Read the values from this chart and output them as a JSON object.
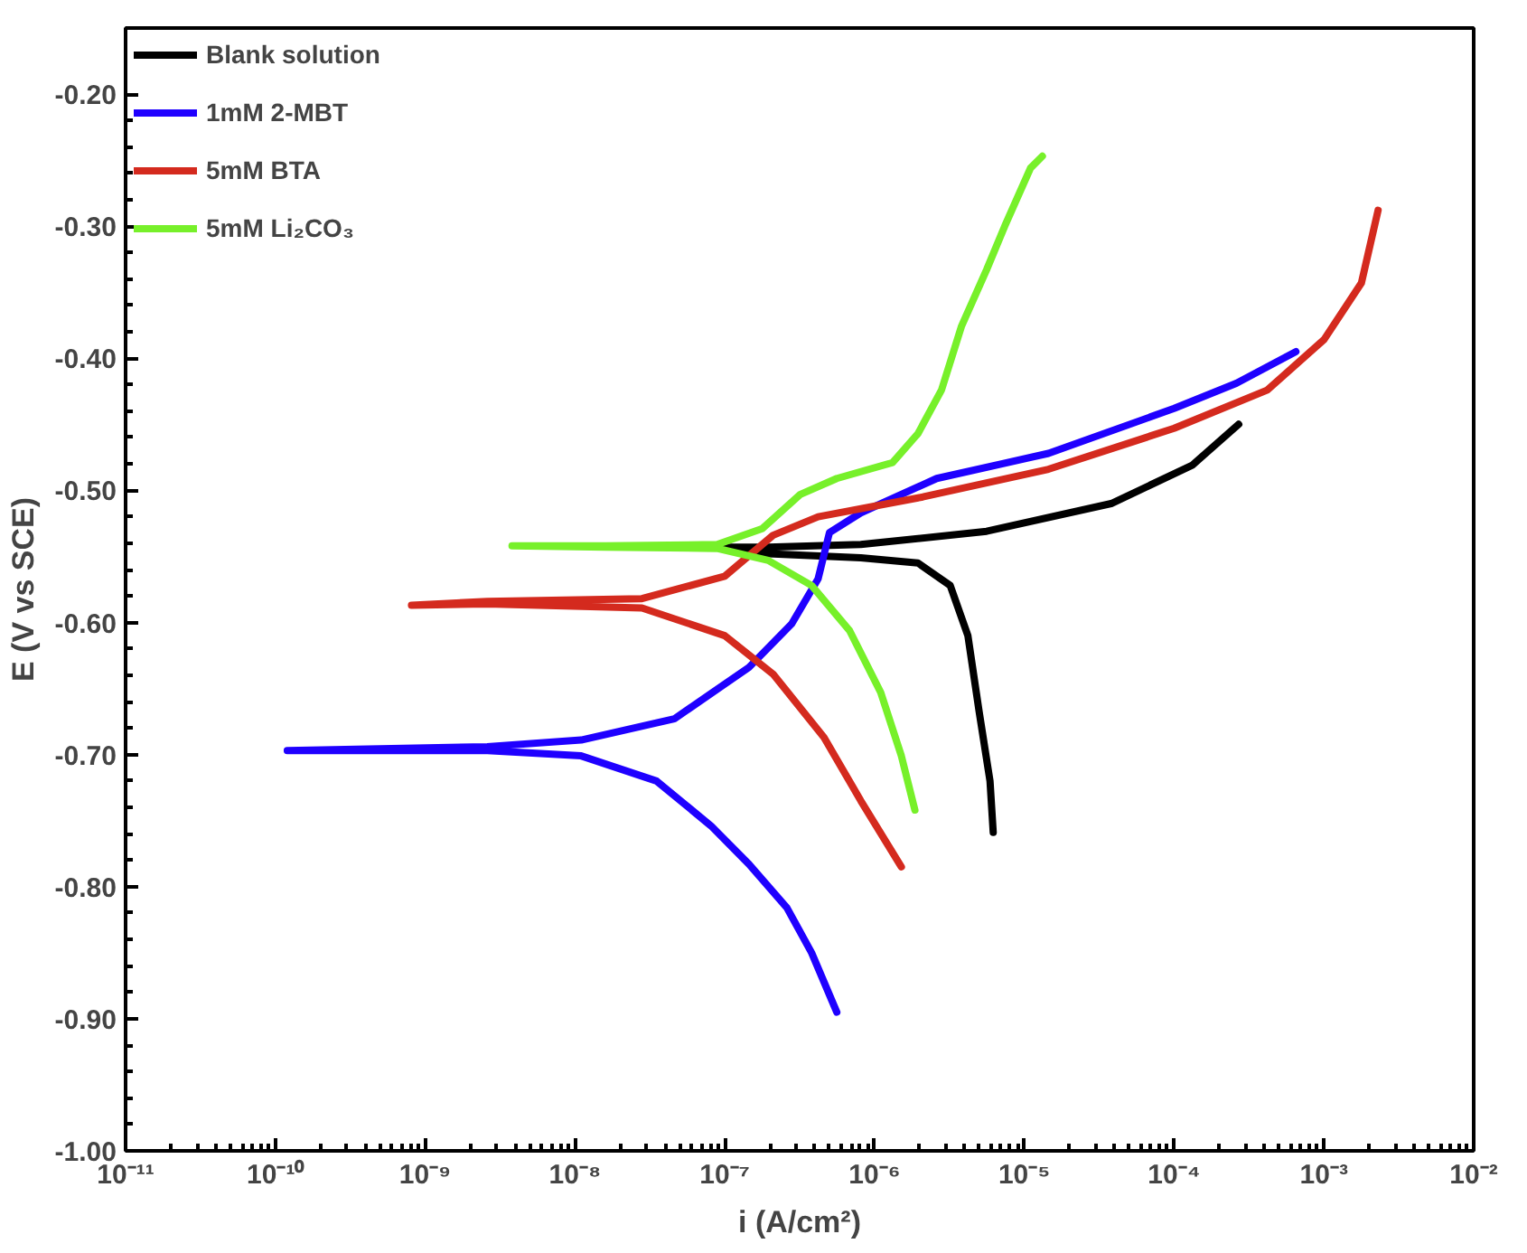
{
  "chart_data": {
    "type": "line",
    "xlabel": "i (A/cm²)",
    "ylabel": "E (V vs SCE)",
    "log": "x",
    "grid": false,
    "legend": "top left",
    "marker": "none",
    "line_style": "solid",
    "xlim": [
      1e-11,
      0.01
    ],
    "ylim": [
      -1.0,
      -0.15
    ],
    "xticks": [
      {
        "value": 1e-11,
        "label": "10⁻¹¹"
      },
      {
        "value": 1e-10,
        "label": "10⁻¹⁰"
      },
      {
        "value": 1e-09,
        "label": "10⁻⁹"
      },
      {
        "value": 1e-08,
        "label": "10⁻⁸"
      },
      {
        "value": 1e-07,
        "label": "10⁻⁷"
      },
      {
        "value": 1e-06,
        "label": "10⁻⁶"
      },
      {
        "value": 1e-05,
        "label": "10⁻⁵"
      },
      {
        "value": 0.0001,
        "label": "10⁻⁴"
      },
      {
        "value": 0.001,
        "label": "10⁻³"
      },
      {
        "value": 0.01,
        "label": "10⁻²"
      }
    ],
    "yticks": [
      {
        "value": -1.0,
        "label": "-1.00"
      },
      {
        "value": -0.9,
        "label": "-0.90"
      },
      {
        "value": -0.8,
        "label": "-0.80"
      },
      {
        "value": -0.7,
        "label": "-0.70"
      },
      {
        "value": -0.6,
        "label": "-0.60"
      },
      {
        "value": -0.5,
        "label": "-0.50"
      },
      {
        "value": -0.4,
        "label": "-0.40"
      },
      {
        "value": -0.3,
        "label": "-0.30"
      },
      {
        "value": -0.2,
        "label": "-0.20"
      }
    ],
    "series": [
      {
        "name": "Blank solution",
        "color": "#000000",
        "x": [
          6.2e-06,
          5.9e-06,
          5e-06,
          4.2e-06,
          3.2e-06,
          1.95e-06,
          8.1e-07,
          1.95e-07,
          8.9e-08,
          1.95e-07,
          8.1e-07,
          5.6e-06,
          3.8e-05,
          0.000132,
          0.00027
        ],
        "values": [
          -0.759,
          -0.72,
          -0.668,
          -0.61,
          -0.572,
          -0.555,
          -0.551,
          -0.548,
          -0.543,
          -0.543,
          -0.541,
          -0.531,
          -0.51,
          -0.481,
          -0.45
        ]
      },
      {
        "name": "1mM 2-MBT",
        "color": "#1f00ff",
        "x": [
          5.6e-07,
          3.8e-07,
          2.6e-07,
          1.45e-07,
          8.1e-08,
          3.5e-08,
          1.1e-08,
          2.6e-09,
          1.2e-10,
          2.6e-09,
          1.1e-08,
          4.6e-08,
          1.45e-07,
          2.8e-07,
          4.2e-07,
          5e-07,
          8.1e-07,
          2.6e-06,
          1.45e-05,
          0.0001,
          0.00026,
          0.00065
        ],
        "values": [
          -0.895,
          -0.85,
          -0.816,
          -0.783,
          -0.754,
          -0.72,
          -0.701,
          -0.697,
          -0.697,
          -0.694,
          -0.689,
          -0.673,
          -0.634,
          -0.601,
          -0.567,
          -0.532,
          -0.517,
          -0.491,
          -0.472,
          -0.438,
          -0.419,
          -0.395
        ]
      },
      {
        "name": "5mM BTA",
        "color": "#d42a1e",
        "x": [
          1.51e-06,
          8.1e-07,
          4.6e-07,
          2.1e-07,
          1e-07,
          2.8e-08,
          2.6e-09,
          8.1e-10,
          2.6e-09,
          2.8e-08,
          1e-07,
          2.1e-07,
          4.2e-07,
          2.1e-06,
          1.45e-05,
          0.0001,
          0.00042,
          0.001,
          0.00178,
          0.0023
        ],
        "values": [
          -0.785,
          -0.735,
          -0.687,
          -0.639,
          -0.61,
          -0.589,
          -0.586,
          -0.587,
          -0.584,
          -0.582,
          -0.565,
          -0.534,
          -0.52,
          -0.505,
          -0.484,
          -0.453,
          -0.424,
          -0.386,
          -0.343,
          -0.288
        ]
      },
      {
        "name": "5mM Li₂CO₃",
        "color": "#77f02a",
        "x": [
          1.86e-06,
          1.51e-06,
          1.1e-06,
          6.8e-07,
          3.8e-07,
          1.95e-07,
          8.9e-08,
          1.6e-08,
          3.8e-09,
          1.6e-08,
          8.9e-08,
          1.78e-07,
          3.2e-07,
          5.6e-07,
          1.32e-06,
          1.95e-06,
          2.8e-06,
          3.8e-06,
          5.6e-06,
          7.4e-06,
          1.1e-05,
          1.32e-05
        ],
        "values": [
          -0.742,
          -0.701,
          -0.653,
          -0.606,
          -0.572,
          -0.553,
          -0.544,
          -0.543,
          -0.542,
          -0.542,
          -0.541,
          -0.529,
          -0.503,
          -0.491,
          -0.479,
          -0.457,
          -0.424,
          -0.376,
          -0.333,
          -0.3,
          -0.256,
          -0.247
        ]
      }
    ]
  }
}
